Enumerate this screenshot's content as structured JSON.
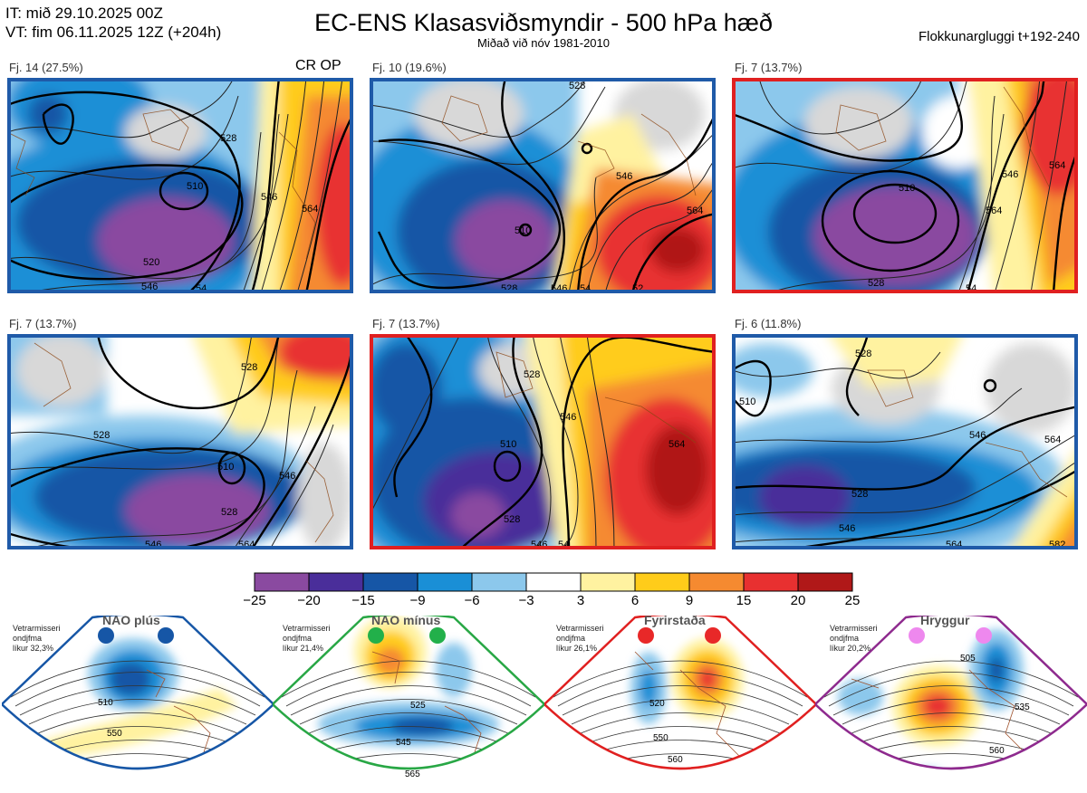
{
  "header": {
    "init_line": "IT: mið 29.10.2025 00Z",
    "valid_line": "VT: fim 06.11.2025 12Z  (+204h)",
    "title": "EC-ENS Klasasviðsmyndir - 500 hPa hæð",
    "subtitle": "Miðað við nóv 1981-2010",
    "cluster_window": "Flokkunargluggi t+192-240"
  },
  "panels": [
    {
      "label": "Fj. 14 (27.5%)",
      "extra": "CR OP",
      "frame_color": "#1f5aa8",
      "contours": [
        "510",
        "520",
        "528",
        "546",
        "564",
        "546",
        "54"
      ]
    },
    {
      "label": "Fj. 10 (19.6%)",
      "frame_color": "#1f5aa8",
      "contours": [
        "528",
        "510",
        "528",
        "546",
        "564",
        "546",
        "54",
        "52"
      ]
    },
    {
      "label": "Fj. 7 (13.7%)",
      "frame_color": "#e02020",
      "contours": [
        "510",
        "528",
        "546",
        "564",
        "564",
        "54"
      ]
    },
    {
      "label": "Fj. 7 (13.7%)",
      "frame_color": "#1f5aa8",
      "contours": [
        "528",
        "528",
        "510",
        "528",
        "546",
        "546",
        "564"
      ]
    },
    {
      "label": "Fj. 7 (13.7%)",
      "frame_color": "#e02020",
      "contours": [
        "528",
        "510",
        "528",
        "546",
        "564",
        "546",
        "54"
      ]
    },
    {
      "label": "Fj. 6 (11.8%)",
      "frame_color": "#1f5aa8",
      "contours": [
        "510",
        "528",
        "528",
        "546",
        "564",
        "546",
        "564",
        "582"
      ]
    }
  ],
  "colorbar": {
    "ticks": [
      "−25",
      "−20",
      "−15",
      "−9",
      "−6",
      "−3",
      "3",
      "6",
      "9",
      "15",
      "20",
      "25"
    ],
    "colors": [
      "#8a4aa0",
      "#4a2e9a",
      "#1656a6",
      "#1a8fd6",
      "#8cc8ec",
      "#ffffff",
      "#fff2a0",
      "#ffcc1a",
      "#f58a30",
      "#e83030",
      "#b01818"
    ]
  },
  "regimes": [
    {
      "name": "NAO plús",
      "info": [
        "Vetrarmisseri",
        "ondjfma",
        "líkur 32,3%"
      ],
      "dot_color": "#1656a6",
      "frame_color": "#1656a6",
      "contours": [
        "510",
        "550"
      ]
    },
    {
      "name": "NAO mínus",
      "info": [
        "Vetrarmisseri",
        "ondjfma",
        "líkur 21,4%"
      ],
      "dot_color": "#22b04a",
      "frame_color": "#28a745",
      "contours": [
        "525",
        "545",
        "565"
      ]
    },
    {
      "name": "Fyrirstaða",
      "info": [
        "Vetrarmisseri",
        "ondjfma",
        "líkur 26,1%"
      ],
      "dot_color": "#e82828",
      "frame_color": "#e02020",
      "contours": [
        "520",
        "550",
        "560"
      ]
    },
    {
      "name": "Hryggur",
      "info": [
        "Vetrarmisseri",
        "ondjfma",
        "líkur 20,2%"
      ],
      "dot_color": "#ee88ee",
      "frame_color": "#8e2a8e",
      "contours": [
        "505",
        "535",
        "560"
      ]
    }
  ]
}
